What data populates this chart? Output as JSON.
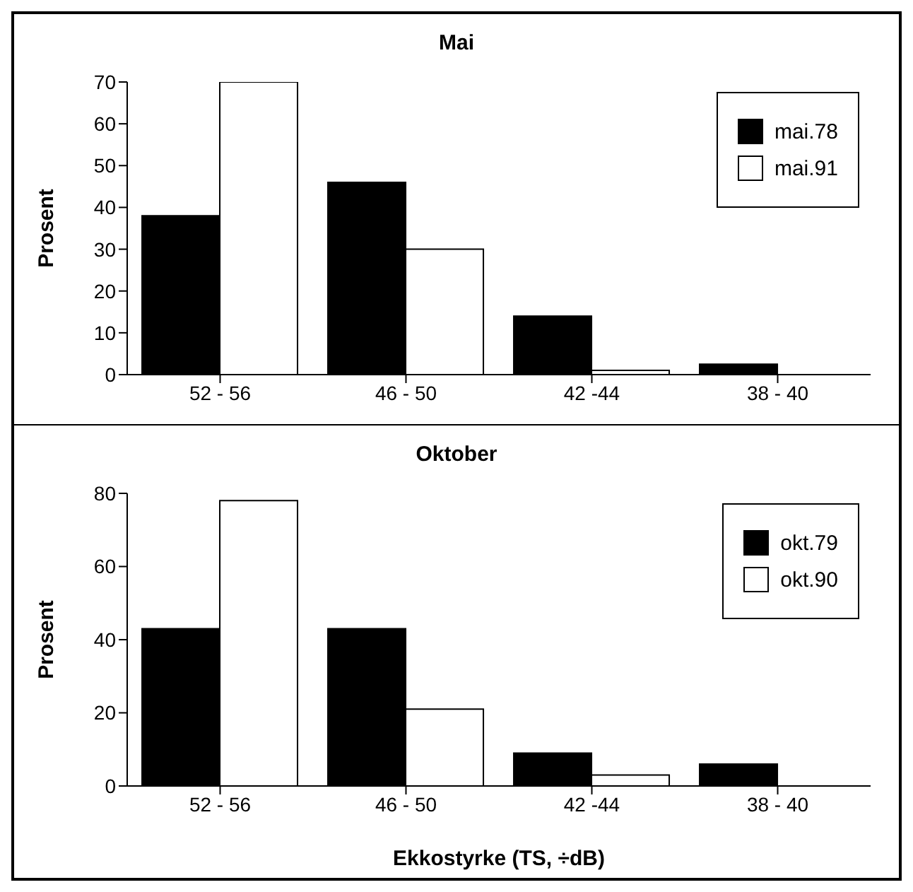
{
  "chart_data": [
    {
      "type": "bar",
      "title": "Mai",
      "ylabel": "Prosent",
      "categories": [
        "52 - 56",
        "46 - 50",
        "42 -44",
        "38 - 40"
      ],
      "series": [
        {
          "name": "mai.78",
          "color": "#000000",
          "values": [
            38,
            46,
            14,
            2.5
          ]
        },
        {
          "name": "mai.91",
          "color": "#ffffff",
          "values": [
            70,
            30,
            1,
            0
          ]
        }
      ],
      "ylim": [
        0,
        70
      ],
      "yticks": [
        0,
        10,
        20,
        30,
        40,
        50,
        60,
        70
      ],
      "grid": false,
      "legend": "top right"
    },
    {
      "type": "bar",
      "title": "Oktober",
      "xlabel": "Ekkostyrke (TS, ÷dB)",
      "ylabel": "Prosent",
      "categories": [
        "52 - 56",
        "46 - 50",
        "42 -44",
        "38 - 40"
      ],
      "series": [
        {
          "name": "okt.79",
          "color": "#000000",
          "values": [
            43,
            43,
            9,
            6
          ]
        },
        {
          "name": "okt.90",
          "color": "#ffffff",
          "values": [
            78,
            21,
            3,
            0
          ]
        }
      ],
      "ylim": [
        0,
        80
      ],
      "yticks": [
        0,
        20,
        40,
        60,
        80
      ],
      "grid": false,
      "legend": "top right"
    }
  ]
}
